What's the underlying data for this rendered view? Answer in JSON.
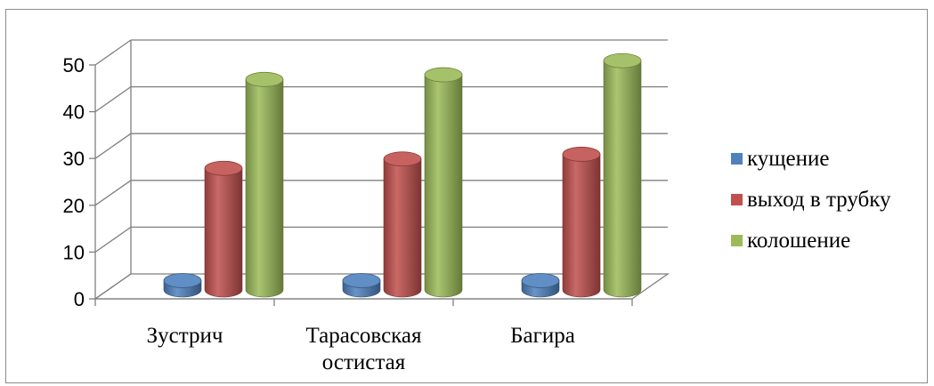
{
  "chart_data": {
    "type": "bar",
    "style": "3d-cylinder",
    "categories": [
      [
        "Зустрич"
      ],
      [
        "Тарасовская",
        "остистая"
      ],
      [
        "Багира"
      ]
    ],
    "series": [
      {
        "name": "кущение",
        "color": "#4f81bd",
        "values": [
          2,
          2,
          2
        ]
      },
      {
        "name": "выход в трубку",
        "color": "#c0504d",
        "values": [
          26,
          28,
          29
        ]
      },
      {
        "name": "колошение",
        "color": "#9bbb59",
        "values": [
          45,
          46,
          49
        ]
      }
    ],
    "yticks": [
      0,
      10,
      20,
      30,
      40,
      50
    ],
    "ylim": [
      0,
      50
    ],
    "grid": true,
    "legend": "right"
  }
}
